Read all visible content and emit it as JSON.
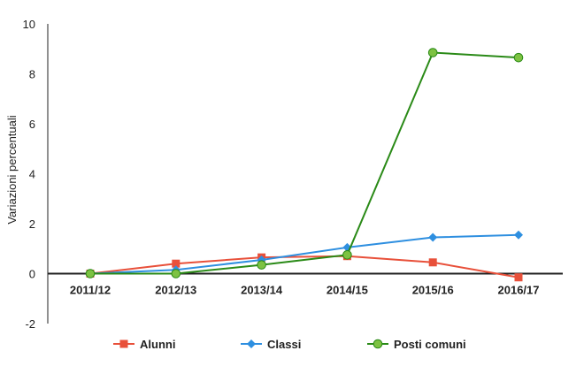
{
  "chart_data": {
    "type": "line",
    "title": "",
    "xlabel": "",
    "ylabel": "Variazioni percentuali",
    "ylim": [
      -2,
      10
    ],
    "yticks": [
      "-2",
      "0",
      "2",
      "4",
      "6",
      "8",
      "10"
    ],
    "categories": [
      "2011/12",
      "2012/13",
      "2013/14",
      "2014/15",
      "2015/16",
      "2016/17"
    ],
    "grid": false,
    "legend_position": "bottom",
    "series": [
      {
        "name": "Alunni",
        "color": "#e8503a",
        "marker": "square",
        "values": [
          0,
          0.4,
          0.65,
          0.7,
          0.45,
          -0.15
        ]
      },
      {
        "name": "Classi",
        "color": "#2e8fe0",
        "marker": "diamond",
        "values": [
          0,
          0.15,
          0.55,
          1.05,
          1.45,
          1.55
        ]
      },
      {
        "name": "Posti comuni",
        "color": "#2a8a17",
        "marker": "circle",
        "marker_fill": "#7dc242",
        "values": [
          0,
          0.0,
          0.35,
          0.75,
          8.85,
          8.65
        ]
      }
    ]
  }
}
